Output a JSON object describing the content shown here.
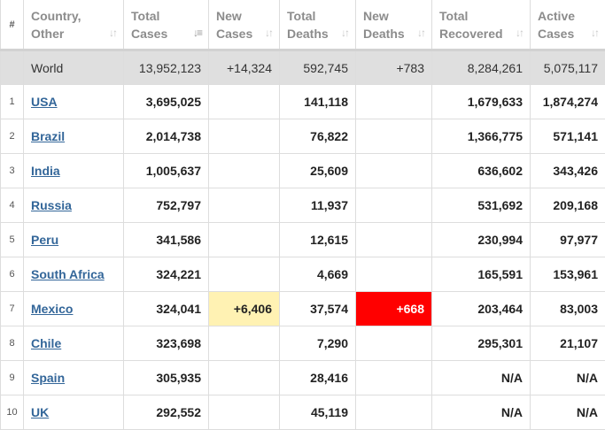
{
  "headers": {
    "num": "#",
    "country_1": "Country,",
    "country_2": "Other",
    "total_cases_1": "Total",
    "total_cases_2": "Cases",
    "new_cases_1": "New",
    "new_cases_2": "Cases",
    "total_deaths_1": "Total",
    "total_deaths_2": "Deaths",
    "new_deaths_1": "New",
    "new_deaths_2": "Deaths",
    "total_recovered_1": "Total",
    "total_recovered_2": "Recovered",
    "active_cases_1": "Active",
    "active_cases_2": "Cases"
  },
  "world": {
    "country": "World",
    "total_cases": "13,952,123",
    "new_cases": "+14,324",
    "total_deaths": "592,745",
    "new_deaths": "+783",
    "total_recovered": "8,284,261",
    "active_cases": "5,075,117"
  },
  "rows": [
    {
      "num": "1",
      "country": "USA",
      "total_cases": "3,695,025",
      "new_cases": "",
      "total_deaths": "141,118",
      "new_deaths": "",
      "total_recovered": "1,679,633",
      "active_cases": "1,874,274"
    },
    {
      "num": "2",
      "country": "Brazil",
      "total_cases": "2,014,738",
      "new_cases": "",
      "total_deaths": "76,822",
      "new_deaths": "",
      "total_recovered": "1,366,775",
      "active_cases": "571,141"
    },
    {
      "num": "3",
      "country": "India",
      "total_cases": "1,005,637",
      "new_cases": "",
      "total_deaths": "25,609",
      "new_deaths": "",
      "total_recovered": "636,602",
      "active_cases": "343,426"
    },
    {
      "num": "4",
      "country": "Russia",
      "total_cases": "752,797",
      "new_cases": "",
      "total_deaths": "11,937",
      "new_deaths": "",
      "total_recovered": "531,692",
      "active_cases": "209,168"
    },
    {
      "num": "5",
      "country": "Peru",
      "total_cases": "341,586",
      "new_cases": "",
      "total_deaths": "12,615",
      "new_deaths": "",
      "total_recovered": "230,994",
      "active_cases": "97,977"
    },
    {
      "num": "6",
      "country": "South Africa",
      "total_cases": "324,221",
      "new_cases": "",
      "total_deaths": "4,669",
      "new_deaths": "",
      "total_recovered": "165,591",
      "active_cases": "153,961"
    },
    {
      "num": "7",
      "country": "Mexico",
      "total_cases": "324,041",
      "new_cases": "+6,406",
      "total_deaths": "37,574",
      "new_deaths": "+668",
      "total_recovered": "203,464",
      "active_cases": "83,003"
    },
    {
      "num": "8",
      "country": "Chile",
      "total_cases": "323,698",
      "new_cases": "",
      "total_deaths": "7,290",
      "new_deaths": "",
      "total_recovered": "295,301",
      "active_cases": "21,107"
    },
    {
      "num": "9",
      "country": "Spain",
      "total_cases": "305,935",
      "new_cases": "",
      "total_deaths": "28,416",
      "new_deaths": "",
      "total_recovered": "N/A",
      "active_cases": "N/A"
    },
    {
      "num": "10",
      "country": "UK",
      "total_cases": "292,552",
      "new_cases": "",
      "total_deaths": "45,119",
      "new_deaths": "",
      "total_recovered": "N/A",
      "active_cases": "N/A"
    }
  ],
  "colors": {
    "new_cases_highlight": "#fff2b3",
    "new_deaths_highlight": "#ff0000",
    "link": "#336699"
  },
  "icons": {
    "sort": "sort-arrows-icon",
    "sort_active": "sort-descending-icon"
  }
}
